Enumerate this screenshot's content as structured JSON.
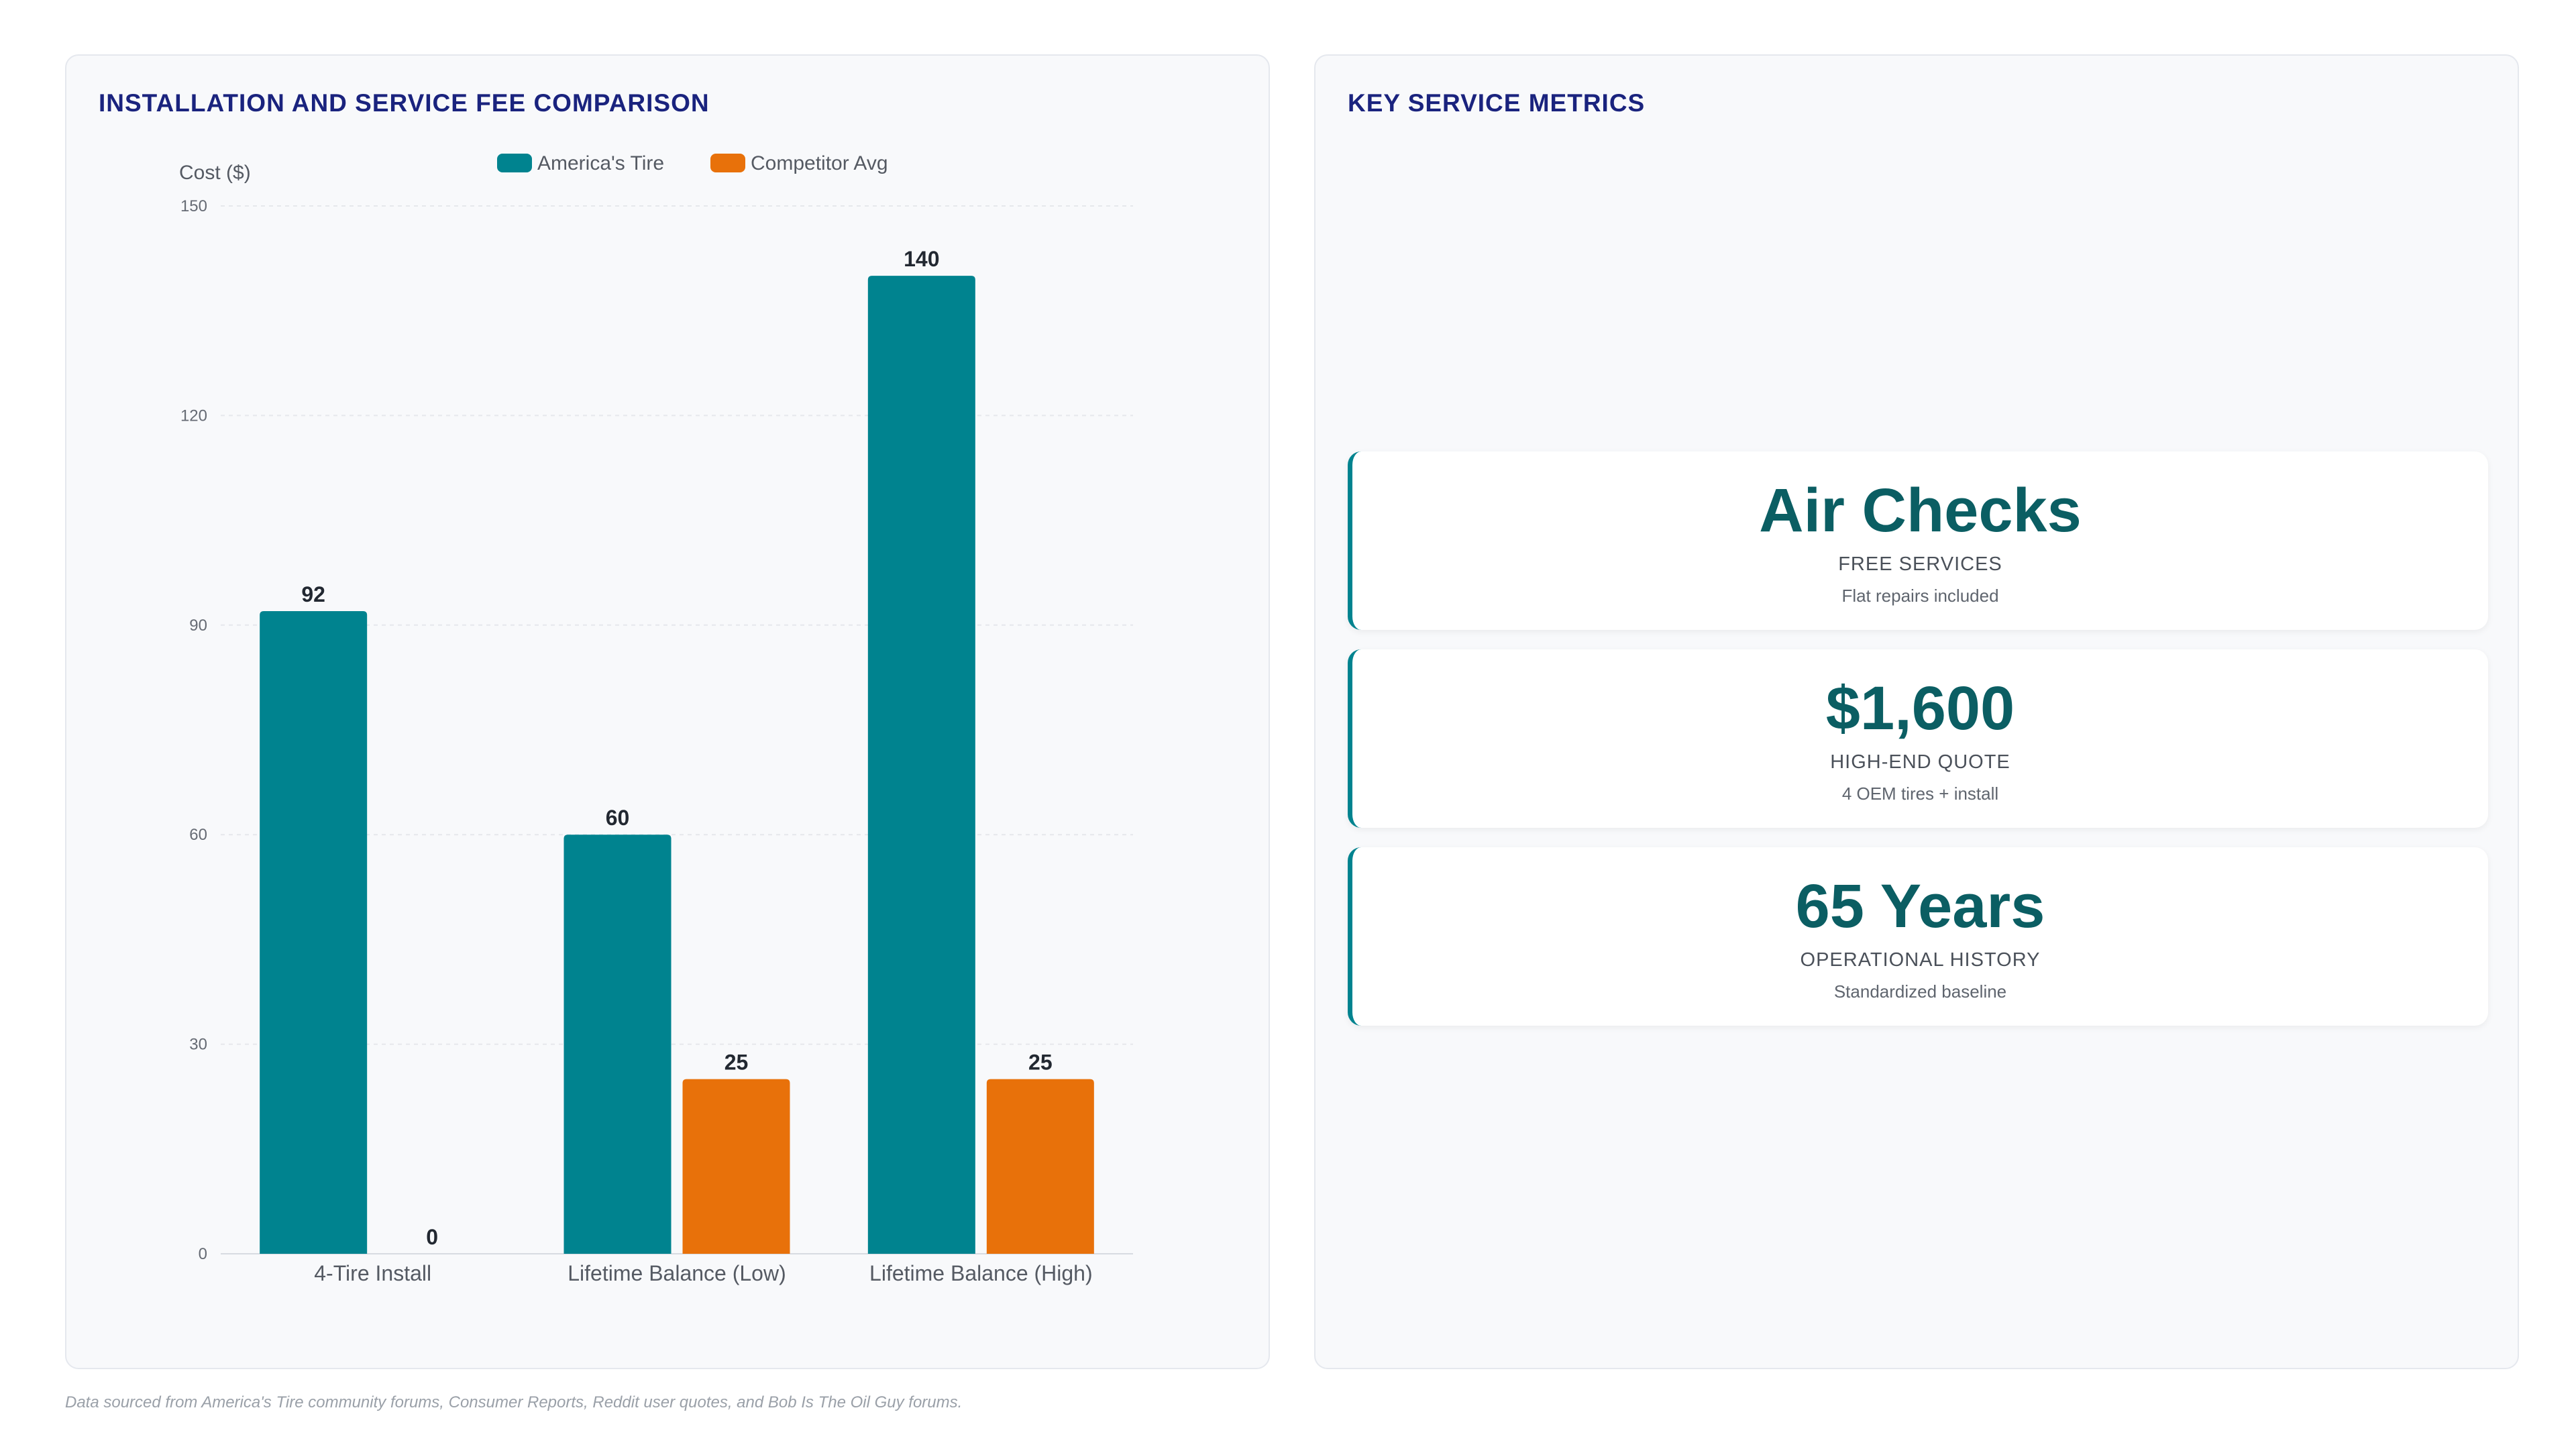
{
  "colors": {
    "americas_tire": "#00838f",
    "competitor": "#e8710a",
    "title": "#1a237e",
    "metric_value": "#0b5e63"
  },
  "left_panel": {
    "title": "INSTALLATION AND SERVICE FEE COMPARISON"
  },
  "chart_data": {
    "type": "bar",
    "title": "INSTALLATION AND SERVICE FEE COMPARISON",
    "categories": [
      "4-Tire Install",
      "Lifetime Balance (Low)",
      "Lifetime Balance (High)"
    ],
    "series": [
      {
        "name": "America's Tire",
        "values": [
          92,
          60,
          140
        ],
        "color": "#00838f"
      },
      {
        "name": "Competitor Avg",
        "values": [
          0,
          25,
          25
        ],
        "color": "#e8710a"
      }
    ],
    "xlabel": "",
    "ylabel": "Cost ($)",
    "ylim": [
      0,
      150
    ],
    "yticks": [
      0,
      30,
      60,
      90,
      120,
      150
    ],
    "grid": true,
    "legend": "top-center",
    "data_labels": true
  },
  "right_panel": {
    "title": "KEY SERVICE METRICS",
    "metrics": [
      {
        "value": "Air Checks",
        "label": "FREE SERVICES",
        "sub": "Flat repairs included"
      },
      {
        "value": "$1,600",
        "label": "HIGH-END QUOTE",
        "sub": "4 OEM tires + install"
      },
      {
        "value": "65 Years",
        "label": "OPERATIONAL HISTORY",
        "sub": "Standardized baseline"
      }
    ]
  },
  "footnote": "Data sourced from America's Tire community forums, Consumer Reports, Reddit user quotes, and Bob Is The Oil Guy forums."
}
